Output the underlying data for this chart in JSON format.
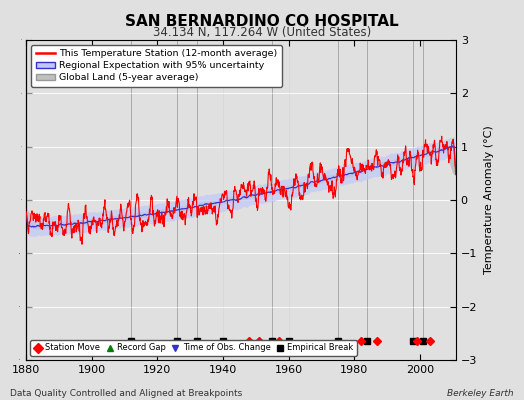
{
  "title": "SAN BERNARDINO CO HOSPITAL",
  "subtitle": "34.134 N, 117.264 W (United States)",
  "ylabel": "Temperature Anomaly (°C)",
  "xlabel_footer": "Data Quality Controlled and Aligned at Breakpoints",
  "footer_right": "Berkeley Earth",
  "ylim": [
    -3,
    3
  ],
  "xlim": [
    1880,
    2011
  ],
  "yticks": [
    -3,
    -2,
    -1,
    0,
    1,
    2,
    3
  ],
  "xticks": [
    1880,
    1900,
    1920,
    1940,
    1960,
    1980,
    2000
  ],
  "bg_color": "#e0e0e0",
  "plot_bg_color": "#e0e0e0",
  "station_color": "#ff0000",
  "regional_color": "#3333cc",
  "regional_fill_color": "#c0c8f8",
  "global_color": "#c0c0c0",
  "legend_items": [
    "This Temperature Station (12-month average)",
    "Regional Expectation with 95% uncertainty",
    "Global Land (5-year average)"
  ],
  "marker_events": {
    "station_moves": [
      1948,
      1951,
      1957,
      1982,
      1987,
      1999,
      2003
    ],
    "record_gaps": [],
    "obs_changes": [],
    "empirical_breaks": [
      1912,
      1926,
      1932,
      1940,
      1955,
      1960,
      1975,
      1984,
      1998,
      2001
    ]
  },
  "grid_color": "#ffffff",
  "vline_color": "#aaaaaa"
}
